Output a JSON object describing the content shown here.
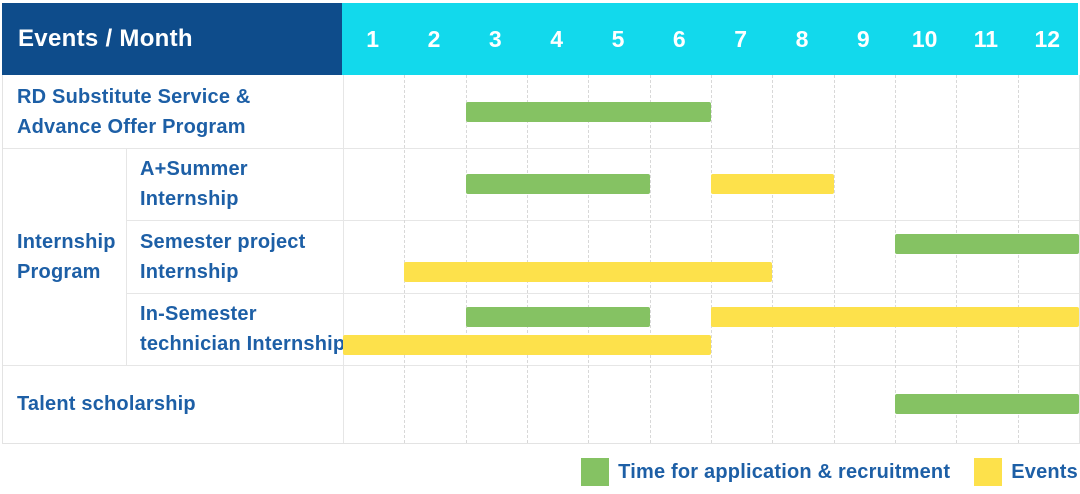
{
  "header": {
    "title": "Events / Month",
    "months": [
      "1",
      "2",
      "3",
      "4",
      "5",
      "6",
      "7",
      "8",
      "9",
      "10",
      "11",
      "12"
    ]
  },
  "group": {
    "label": "Internship Program",
    "label_lines": [
      "Internship",
      "Program"
    ]
  },
  "rows": [
    {
      "label": "RD Substitute Service & Advance Offer Program",
      "label_lines": [
        "RD Substitute Service &",
        "Advance Offer Program"
      ]
    },
    {
      "label": "A+Summer Internship",
      "label_lines": [
        "A+Summer",
        "Internship"
      ]
    },
    {
      "label": "Semester project Internship",
      "label_lines": [
        "Semester project",
        "Internship"
      ]
    },
    {
      "label": "In-Semester technician Internship",
      "label_lines": [
        "In-Semester",
        "technician Internship"
      ]
    },
    {
      "label": "Talent scholarship",
      "label_lines": [
        "Talent scholarship"
      ]
    }
  ],
  "legend": [
    {
      "label": "Time for application & recruitment",
      "series": "application",
      "color": "#85C263"
    },
    {
      "label": "Events",
      "series": "event",
      "color": "#FDE14B"
    }
  ],
  "colors": {
    "header_bg": "#0E4C8B",
    "month_header_bg": "#12D9EC",
    "header_text": "#FFFFFF",
    "label_text": "#1D5FA6",
    "application_green": "#85C263",
    "event_yellow": "#FDE14B",
    "grid_line": "#E3E3E3"
  },
  "chart_data": {
    "type": "bar",
    "variant": "gantt-schedule",
    "title": "Events / Month",
    "x_categories": [
      "1",
      "2",
      "3",
      "4",
      "5",
      "6",
      "7",
      "8",
      "9",
      "10",
      "11",
      "12"
    ],
    "x_range": [
      1,
      12
    ],
    "grid": "vertical-dashed",
    "legend_position": "bottom-right",
    "series_types": {
      "application": {
        "label": "Time for application & recruitment",
        "color": "#85C263"
      },
      "event": {
        "label": "Events",
        "color": "#FDE14B"
      }
    },
    "rows": [
      {
        "label": "RD Substitute Service & Advance Offer Program",
        "group": "",
        "bars": [
          {
            "series": "application",
            "start_month": 3,
            "end_month": 6,
            "band": "center"
          }
        ]
      },
      {
        "label": "A+Summer Internship",
        "group": "Internship Program",
        "bars": [
          {
            "series": "application",
            "start_month": 3,
            "end_month": 5,
            "band": "center"
          },
          {
            "series": "event",
            "start_month": 7,
            "end_month": 8,
            "band": "center"
          }
        ]
      },
      {
        "label": "Semester project Internship",
        "group": "Internship Program",
        "bars": [
          {
            "series": "application",
            "start_month": 10,
            "end_month": 12,
            "band": "upper"
          },
          {
            "series": "event",
            "start_month": 2,
            "end_month": 7,
            "band": "lower"
          }
        ]
      },
      {
        "label": "In-Semester technician Internship",
        "group": "Internship Program",
        "bars": [
          {
            "series": "application",
            "start_month": 3,
            "end_month": 5,
            "band": "upper"
          },
          {
            "series": "event",
            "start_month": 7,
            "end_month": 12,
            "band": "upper"
          },
          {
            "series": "event",
            "start_month": 1,
            "end_month": 6,
            "band": "lower"
          }
        ]
      },
      {
        "label": "Talent scholarship",
        "group": "",
        "bars": [
          {
            "series": "application",
            "start_month": 10,
            "end_month": 12,
            "band": "center"
          }
        ]
      }
    ]
  }
}
